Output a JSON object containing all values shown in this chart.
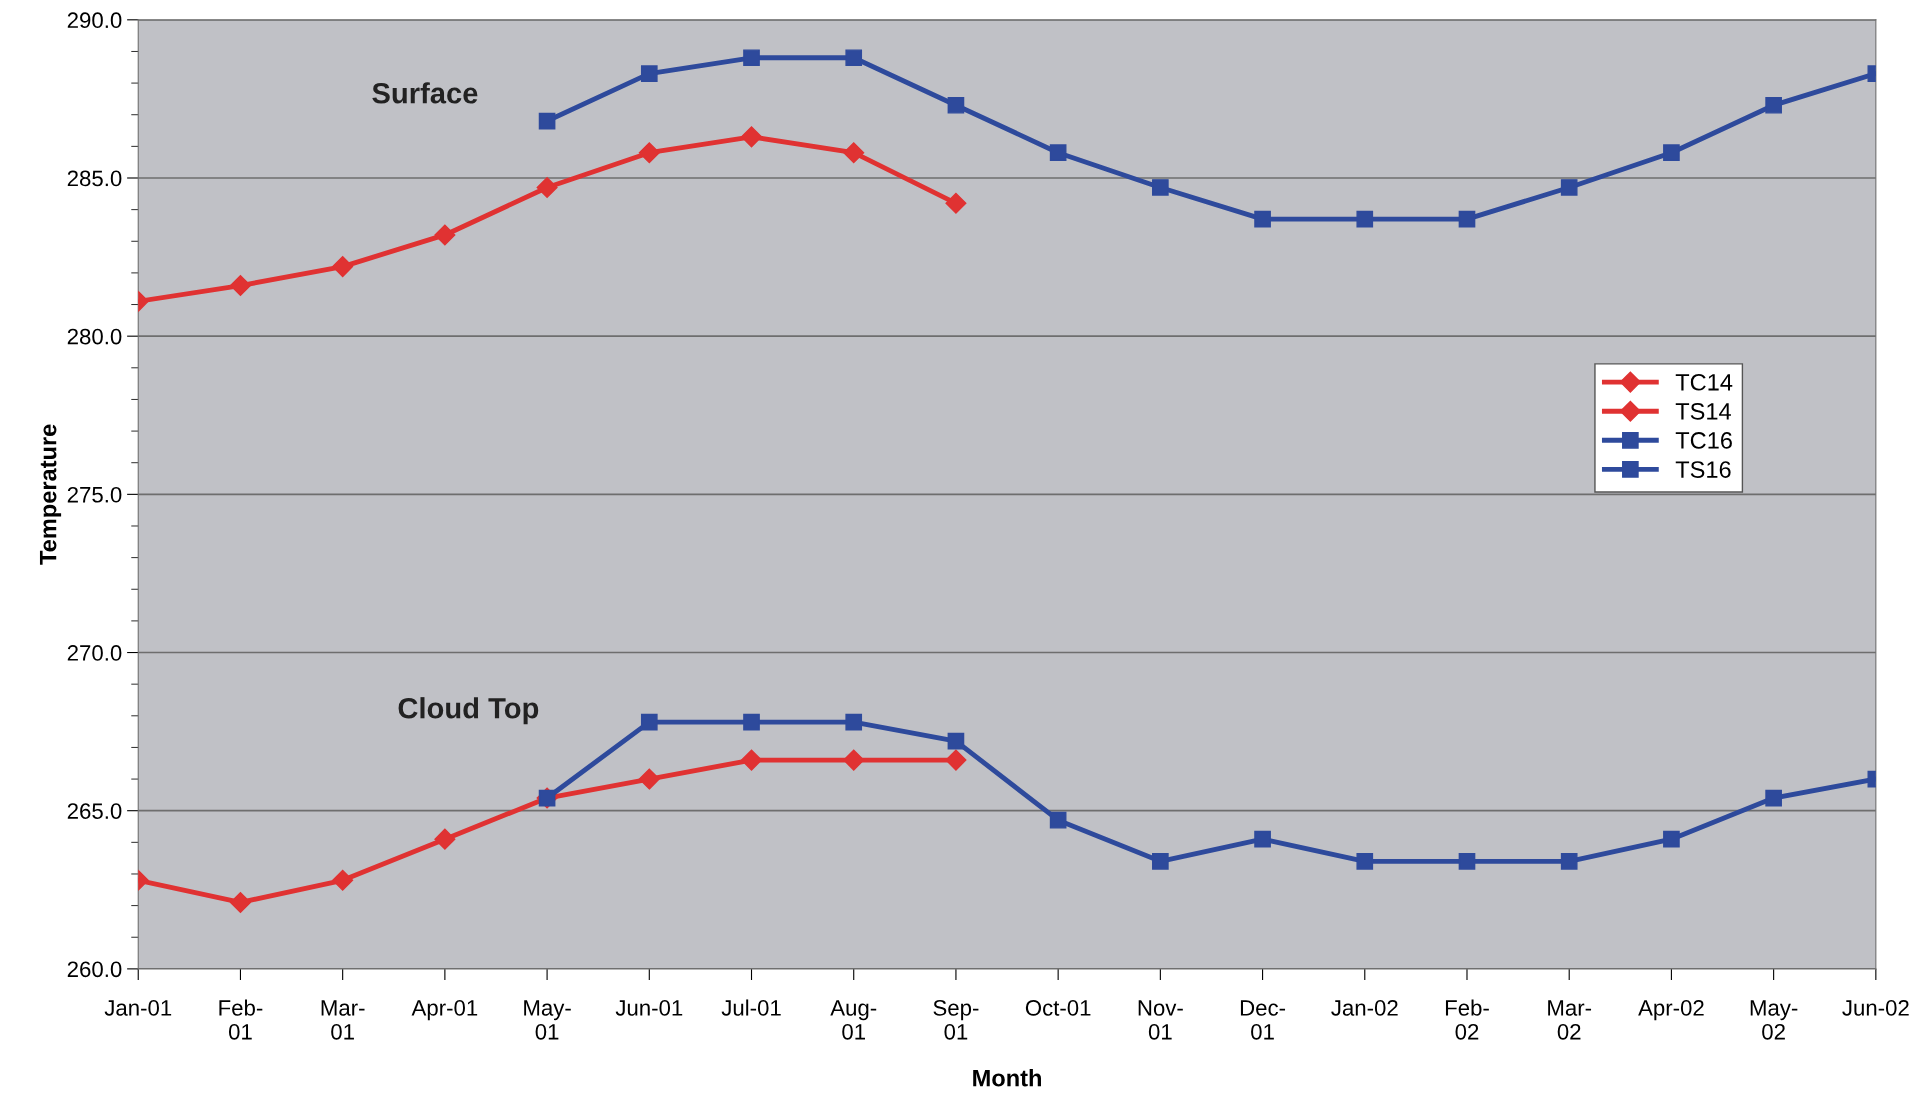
{
  "chart_data": {
    "type": "line",
    "xlabel": "Month",
    "ylabel": "Temperature",
    "categories": [
      "Jan-01",
      "Feb-\n01",
      "Mar-\n01",
      "Apr-01",
      "May-\n01",
      "Jun-01",
      "Jul-01",
      "Aug-\n01",
      "Sep-\n01",
      "Oct-01",
      "Nov-\n01",
      "Dec-\n01",
      "Jan-02",
      "Feb-\n02",
      "Mar-\n02",
      "Apr-02",
      "May-\n02",
      "Jun-02"
    ],
    "series": [
      {
        "name": "TC14",
        "color": "#e03232",
        "marker": "diamond",
        "values": [
          262.8,
          262.1,
          262.8,
          264.1,
          265.4,
          266.0,
          266.6,
          266.6,
          266.6,
          null,
          null,
          null,
          null,
          null,
          null,
          null,
          null,
          null
        ]
      },
      {
        "name": "TS14",
        "color": "#e03232",
        "marker": "diamond",
        "values": [
          281.1,
          281.6,
          282.2,
          283.2,
          284.7,
          285.8,
          286.3,
          285.8,
          284.2,
          null,
          null,
          null,
          null,
          null,
          null,
          null,
          null,
          null
        ]
      },
      {
        "name": "TC16",
        "color": "#2e4a9c",
        "marker": "square",
        "values": [
          null,
          null,
          null,
          null,
          265.4,
          267.8,
          267.8,
          267.8,
          267.2,
          264.7,
          263.4,
          264.1,
          263.4,
          263.4,
          263.4,
          264.1,
          265.4,
          266.0
        ]
      },
      {
        "name": "TS16",
        "color": "#2e4a9c",
        "marker": "square",
        "values": [
          null,
          null,
          null,
          null,
          286.8,
          288.3,
          288.8,
          288.8,
          287.3,
          285.8,
          284.7,
          283.7,
          283.7,
          283.7,
          284.7,
          285.8,
          287.3,
          288.3
        ]
      }
    ],
    "ylim": [
      260,
      290
    ],
    "yticks": [
      {
        "value": 260,
        "label": "260.0"
      },
      {
        "value": 261,
        "label": null
      },
      {
        "value": 262,
        "label": null
      },
      {
        "value": 263,
        "label": null
      },
      {
        "value": 264,
        "label": null
      },
      {
        "value": 265,
        "label": "265.0"
      },
      {
        "value": 266,
        "label": null
      },
      {
        "value": 267,
        "label": null
      },
      {
        "value": 268,
        "label": null
      },
      {
        "value": 269,
        "label": null
      },
      {
        "value": 270,
        "label": "270.0"
      },
      {
        "value": 271,
        "label": null
      },
      {
        "value": 272,
        "label": null
      },
      {
        "value": 273,
        "label": null
      },
      {
        "value": 274,
        "label": null
      },
      {
        "value": 275,
        "label": "275.0"
      },
      {
        "value": 276,
        "label": null
      },
      {
        "value": 277,
        "label": null
      },
      {
        "value": 278,
        "label": null
      },
      {
        "value": 279,
        "label": null
      },
      {
        "value": 280,
        "label": "280.0"
      },
      {
        "value": 281,
        "label": null
      },
      {
        "value": 282,
        "label": null
      },
      {
        "value": 283,
        "label": null
      },
      {
        "value": 284,
        "label": null
      },
      {
        "value": 285,
        "label": "285.0"
      },
      {
        "value": 286,
        "label": null
      },
      {
        "value": 287,
        "label": null
      },
      {
        "value": 288,
        "label": null
      },
      {
        "value": 289,
        "label": null
      },
      {
        "value": 290,
        "label": "290.0"
      }
    ],
    "annotations": [
      "Surface",
      "Cloud Top"
    ],
    "grid": "y",
    "legend": "right",
    "line_style": "solid"
  }
}
